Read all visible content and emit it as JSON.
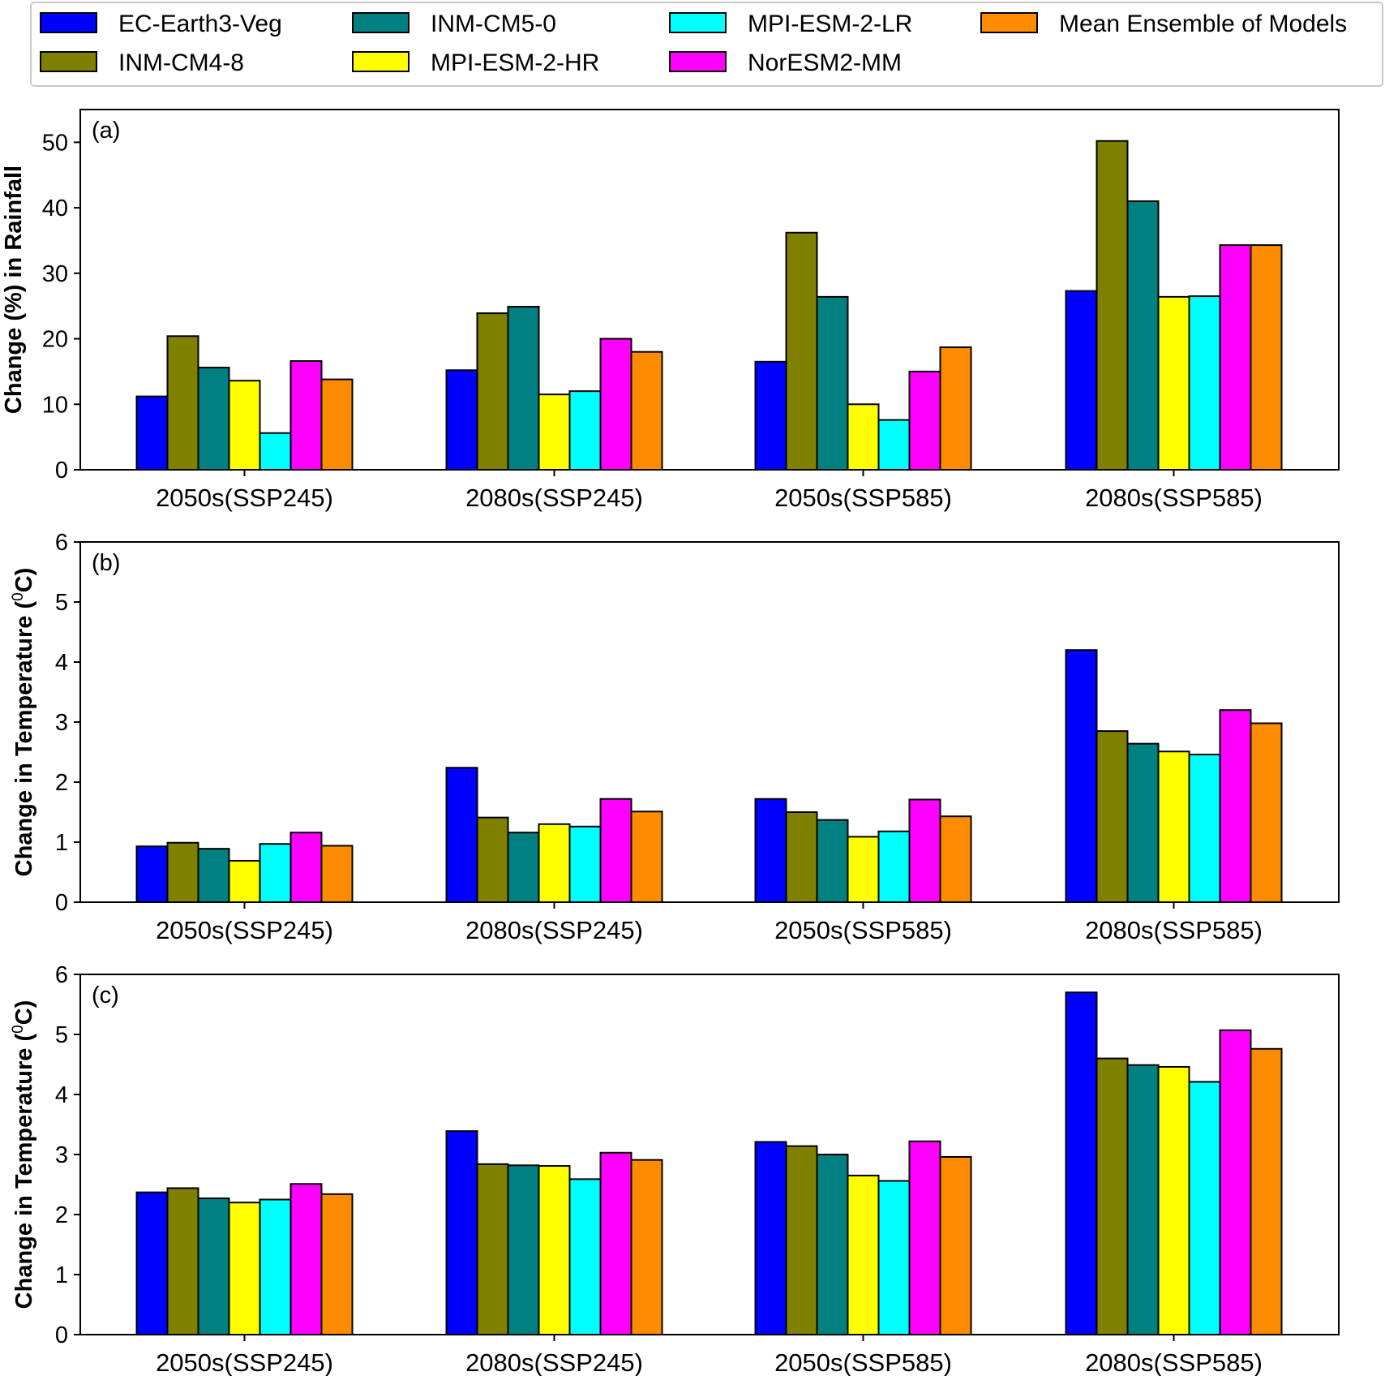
{
  "chart_data": [
    {
      "type": "bar",
      "panel_label": "(a)",
      "ylabel_parts": [
        "Change (%) in Rainfall"
      ],
      "ylim": [
        0,
        55
      ],
      "yticks": [
        0,
        10,
        20,
        30,
        40,
        50
      ],
      "categories": [
        "2050s(SSP245)",
        "2080s(SSP245)",
        "2050s(SSP585)",
        "2080s(SSP585)"
      ],
      "series": [
        {
          "name": "EC-Earth3-Veg",
          "values": [
            11.2,
            15.2,
            16.5,
            27.3
          ]
        },
        {
          "name": "INM-CM4-8",
          "values": [
            20.4,
            23.9,
            36.2,
            50.2
          ]
        },
        {
          "name": "INM-CM5-0",
          "values": [
            15.6,
            24.9,
            26.4,
            41.0
          ]
        },
        {
          "name": "MPI-ESM-2-HR",
          "values": [
            13.6,
            11.5,
            10.0,
            26.4
          ]
        },
        {
          "name": "MPI-ESM-2-LR",
          "values": [
            5.6,
            12.0,
            7.6,
            26.5
          ]
        },
        {
          "name": "NorESM2-MM",
          "values": [
            16.6,
            20.0,
            15.0,
            34.3
          ]
        },
        {
          "name": "Mean Ensemble of Models",
          "values": [
            13.8,
            18.0,
            18.7,
            34.3
          ]
        }
      ]
    },
    {
      "type": "bar",
      "panel_label": "(b)",
      "ylabel_parts": [
        "Change in Temperature (",
        "0",
        "C)"
      ],
      "ylim": [
        0,
        6
      ],
      "yticks": [
        0,
        1,
        2,
        3,
        4,
        5,
        6
      ],
      "categories": [
        "2050s(SSP245)",
        "2080s(SSP245)",
        "2050s(SSP585)",
        "2080s(SSP585)"
      ],
      "series": [
        {
          "name": "EC-Earth3-Veg",
          "values": [
            0.93,
            2.24,
            1.72,
            4.2
          ]
        },
        {
          "name": "INM-CM4-8",
          "values": [
            0.99,
            1.41,
            1.5,
            2.85
          ]
        },
        {
          "name": "INM-CM5-0",
          "values": [
            0.89,
            1.16,
            1.37,
            2.64
          ]
        },
        {
          "name": "MPI-ESM-2-HR",
          "values": [
            0.69,
            1.3,
            1.09,
            2.51
          ]
        },
        {
          "name": "MPI-ESM-2-LR",
          "values": [
            0.97,
            1.26,
            1.18,
            2.46
          ]
        },
        {
          "name": "NorESM2-MM",
          "values": [
            1.16,
            1.72,
            1.71,
            3.2
          ]
        },
        {
          "name": "Mean Ensemble of Models",
          "values": [
            0.94,
            1.51,
            1.43,
            2.98
          ]
        }
      ]
    },
    {
      "type": "bar",
      "panel_label": "(c)",
      "ylabel_parts": [
        "Change in Temperature (",
        "0",
        "C)"
      ],
      "ylim": [
        0,
        6
      ],
      "yticks": [
        0,
        1,
        2,
        3,
        4,
        5,
        6
      ],
      "categories": [
        "2050s(SSP245)",
        "2080s(SSP245)",
        "2050s(SSP585)",
        "2080s(SSP585)"
      ],
      "series": [
        {
          "name": "EC-Earth3-Veg",
          "values": [
            2.37,
            3.39,
            3.21,
            5.7
          ]
        },
        {
          "name": "INM-CM4-8",
          "values": [
            2.44,
            2.84,
            3.14,
            4.6
          ]
        },
        {
          "name": "INM-CM5-0",
          "values": [
            2.27,
            2.82,
            3.0,
            4.49
          ]
        },
        {
          "name": "MPI-ESM-2-HR",
          "values": [
            2.2,
            2.81,
            2.65,
            4.46
          ]
        },
        {
          "name": "MPI-ESM-2-LR",
          "values": [
            2.25,
            2.59,
            2.56,
            4.21
          ]
        },
        {
          "name": "NorESM2-MM",
          "values": [
            2.51,
            3.03,
            3.22,
            5.07
          ]
        },
        {
          "name": "Mean Ensemble of Models",
          "values": [
            2.34,
            2.91,
            2.96,
            4.76
          ]
        }
      ]
    }
  ],
  "legend": {
    "placement": "top",
    "entries": [
      {
        "name": "EC-Earth3-Veg",
        "color": "#0000ff"
      },
      {
        "name": "INM-CM4-8",
        "color": "#808000"
      },
      {
        "name": "INM-CM5-0",
        "color": "#008080"
      },
      {
        "name": "MPI-ESM-2-HR",
        "color": "#ffff00"
      },
      {
        "name": "MPI-ESM-2-LR",
        "color": "#00ffff"
      },
      {
        "name": "NorESM2-MM",
        "color": "#ff00ff"
      },
      {
        "name": "Mean Ensemble of Models",
        "color": "#ff8c00"
      }
    ]
  },
  "colors": {
    "EC-Earth3-Veg": "#0000ff",
    "INM-CM4-8": "#808000",
    "INM-CM5-0": "#008080",
    "MPI-ESM-2-HR": "#ffff00",
    "MPI-ESM-2-LR": "#00ffff",
    "NorESM2-MM": "#ff00ff",
    "Mean Ensemble of Models": "#ff8c00"
  }
}
